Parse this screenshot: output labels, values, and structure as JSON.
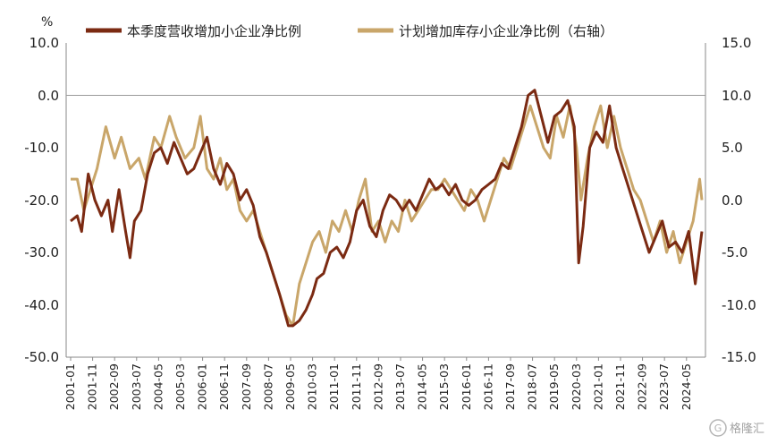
{
  "chart_data": {
    "type": "line",
    "title": "",
    "left_unit": "%",
    "left_axis": {
      "min": -50,
      "max": 10,
      "step": 10,
      "ticks": [
        "10.0",
        "0.0",
        "-10.0",
        "-20.0",
        "-30.0",
        "-40.0",
        "-50.0"
      ]
    },
    "right_axis": {
      "min": -15,
      "max": 15,
      "step": 5,
      "ticks": [
        "15.0",
        "10.0",
        "5.0",
        "0.0",
        "-5.0",
        "-10.0",
        "-15.0"
      ]
    },
    "x_tick_labels": [
      "2001-01",
      "2001-11",
      "2002-09",
      "2003-07",
      "2004-05",
      "2005-03",
      "2006-01",
      "2006-11",
      "2007-09",
      "2008-07",
      "2009-05",
      "2010-03",
      "2011-01",
      "2011-11",
      "2012-09",
      "2013-07",
      "2014-05",
      "2015-03",
      "2016-01",
      "2016-11",
      "2017-09",
      "2018-07",
      "2019-05",
      "2020-03",
      "2021-01",
      "2021-11",
      "2022-09",
      "2023-07",
      "2024-05"
    ],
    "x_start": "2001-01",
    "x_end": "2024-12",
    "series": [
      {
        "name": "本季度营收增加小企业净比例",
        "axis": "left",
        "color": "#7B2A12",
        "anchors": [
          [
            "2001-01",
            -24
          ],
          [
            "2001-04",
            -23
          ],
          [
            "2001-06",
            -26
          ],
          [
            "2001-09",
            -15
          ],
          [
            "2001-12",
            -20
          ],
          [
            "2002-03",
            -23
          ],
          [
            "2002-06",
            -20
          ],
          [
            "2002-08",
            -26
          ],
          [
            "2002-11",
            -18
          ],
          [
            "2003-02",
            -26
          ],
          [
            "2003-04",
            -31
          ],
          [
            "2003-06",
            -24
          ],
          [
            "2003-09",
            -22
          ],
          [
            "2003-12",
            -15
          ],
          [
            "2004-03",
            -11
          ],
          [
            "2004-06",
            -10
          ],
          [
            "2004-09",
            -13
          ],
          [
            "2004-12",
            -9
          ],
          [
            "2005-03",
            -12
          ],
          [
            "2005-06",
            -15
          ],
          [
            "2005-09",
            -14
          ],
          [
            "2005-12",
            -11
          ],
          [
            "2006-03",
            -8
          ],
          [
            "2006-06",
            -14
          ],
          [
            "2006-09",
            -17
          ],
          [
            "2006-12",
            -13
          ],
          [
            "2007-03",
            -15
          ],
          [
            "2007-06",
            -20
          ],
          [
            "2007-09",
            -18
          ],
          [
            "2007-12",
            -21
          ],
          [
            "2008-03",
            -27
          ],
          [
            "2008-06",
            -30
          ],
          [
            "2008-09",
            -34
          ],
          [
            "2008-12",
            -38
          ],
          [
            "2009-02",
            -41
          ],
          [
            "2009-04",
            -44
          ],
          [
            "2009-06",
            -44
          ],
          [
            "2009-09",
            -43
          ],
          [
            "2009-12",
            -41
          ],
          [
            "2010-03",
            -38
          ],
          [
            "2010-05",
            -35
          ],
          [
            "2010-08",
            -34
          ],
          [
            "2010-11",
            -30
          ],
          [
            "2011-02",
            -29
          ],
          [
            "2011-05",
            -31
          ],
          [
            "2011-08",
            -28
          ],
          [
            "2011-11",
            -22
          ],
          [
            "2012-02",
            -20
          ],
          [
            "2012-05",
            -25
          ],
          [
            "2012-08",
            -27
          ],
          [
            "2012-11",
            -22
          ],
          [
            "2013-02",
            -19
          ],
          [
            "2013-05",
            -20
          ],
          [
            "2013-08",
            -22
          ],
          [
            "2013-11",
            -20
          ],
          [
            "2014-02",
            -22
          ],
          [
            "2014-05",
            -19
          ],
          [
            "2014-08",
            -16
          ],
          [
            "2014-11",
            -18
          ],
          [
            "2015-02",
            -17
          ],
          [
            "2015-05",
            -19
          ],
          [
            "2015-08",
            -17
          ],
          [
            "2015-11",
            -20
          ],
          [
            "2016-02",
            -21
          ],
          [
            "2016-05",
            -20
          ],
          [
            "2016-08",
            -18
          ],
          [
            "2016-11",
            -17
          ],
          [
            "2017-02",
            -16
          ],
          [
            "2017-05",
            -13
          ],
          [
            "2017-08",
            -14
          ],
          [
            "2017-11",
            -10
          ],
          [
            "2018-02",
            -6
          ],
          [
            "2018-05",
            0
          ],
          [
            "2018-08",
            1
          ],
          [
            "2018-11",
            -4
          ],
          [
            "2019-02",
            -9
          ],
          [
            "2019-05",
            -4
          ],
          [
            "2019-08",
            -3
          ],
          [
            "2019-11",
            -1
          ],
          [
            "2020-02",
            -6
          ],
          [
            "2020-04",
            -32
          ],
          [
            "2020-06",
            -25
          ],
          [
            "2020-09",
            -10
          ],
          [
            "2020-12",
            -7
          ],
          [
            "2021-03",
            -9
          ],
          [
            "2021-06",
            -2
          ],
          [
            "2021-09",
            -10
          ],
          [
            "2021-12",
            -14
          ],
          [
            "2022-03",
            -18
          ],
          [
            "2022-06",
            -22
          ],
          [
            "2022-09",
            -26
          ],
          [
            "2022-12",
            -30
          ],
          [
            "2023-03",
            -27
          ],
          [
            "2023-06",
            -24
          ],
          [
            "2023-09",
            -29
          ],
          [
            "2023-12",
            -28
          ],
          [
            "2024-03",
            -30
          ],
          [
            "2024-06",
            -26
          ],
          [
            "2024-09",
            -36
          ],
          [
            "2024-12",
            -26
          ]
        ]
      },
      {
        "name": "计划增加库存小企业净比例（右轴）",
        "axis": "right",
        "color": "#C9A66A",
        "anchors": [
          [
            "2001-01",
            2
          ],
          [
            "2001-04",
            2
          ],
          [
            "2001-07",
            -1
          ],
          [
            "2001-10",
            1
          ],
          [
            "2002-01",
            3
          ],
          [
            "2002-05",
            7
          ],
          [
            "2002-09",
            4
          ],
          [
            "2002-12",
            6
          ],
          [
            "2003-04",
            3
          ],
          [
            "2003-08",
            4
          ],
          [
            "2003-11",
            2
          ],
          [
            "2004-03",
            6
          ],
          [
            "2004-06",
            5
          ],
          [
            "2004-10",
            8
          ],
          [
            "2005-01",
            6
          ],
          [
            "2005-05",
            4
          ],
          [
            "2005-09",
            5
          ],
          [
            "2005-12",
            8
          ],
          [
            "2006-03",
            3
          ],
          [
            "2006-06",
            2
          ],
          [
            "2006-09",
            4
          ],
          [
            "2006-12",
            1
          ],
          [
            "2007-03",
            2
          ],
          [
            "2007-06",
            -1
          ],
          [
            "2007-09",
            -2
          ],
          [
            "2007-12",
            -1
          ],
          [
            "2008-03",
            -3
          ],
          [
            "2008-06",
            -5
          ],
          [
            "2008-09",
            -7
          ],
          [
            "2008-12",
            -9
          ],
          [
            "2009-03",
            -11
          ],
          [
            "2009-06",
            -12
          ],
          [
            "2009-09",
            -8
          ],
          [
            "2009-12",
            -6
          ],
          [
            "2010-03",
            -4
          ],
          [
            "2010-06",
            -3
          ],
          [
            "2010-09",
            -5
          ],
          [
            "2010-12",
            -2
          ],
          [
            "2011-03",
            -3
          ],
          [
            "2011-06",
            -1
          ],
          [
            "2011-09",
            -3
          ],
          [
            "2011-12",
            0
          ],
          [
            "2012-03",
            2
          ],
          [
            "2012-06",
            -3
          ],
          [
            "2012-09",
            -2
          ],
          [
            "2012-12",
            -4
          ],
          [
            "2013-03",
            -2
          ],
          [
            "2013-06",
            -3
          ],
          [
            "2013-09",
            0
          ],
          [
            "2013-12",
            -2
          ],
          [
            "2014-03",
            -1
          ],
          [
            "2014-06",
            0
          ],
          [
            "2014-09",
            1
          ],
          [
            "2014-12",
            1
          ],
          [
            "2015-03",
            2
          ],
          [
            "2015-06",
            1
          ],
          [
            "2015-09",
            0
          ],
          [
            "2015-12",
            -1
          ],
          [
            "2016-03",
            1
          ],
          [
            "2016-06",
            0
          ],
          [
            "2016-09",
            -2
          ],
          [
            "2016-12",
            0
          ],
          [
            "2017-03",
            2
          ],
          [
            "2017-06",
            4
          ],
          [
            "2017-09",
            3
          ],
          [
            "2017-12",
            5
          ],
          [
            "2018-03",
            7
          ],
          [
            "2018-06",
            9
          ],
          [
            "2018-09",
            7
          ],
          [
            "2018-12",
            5
          ],
          [
            "2019-03",
            4
          ],
          [
            "2019-06",
            8
          ],
          [
            "2019-09",
            6
          ],
          [
            "2019-12",
            9
          ],
          [
            "2020-03",
            5
          ],
          [
            "2020-05",
            0
          ],
          [
            "2020-08",
            4
          ],
          [
            "2020-11",
            7
          ],
          [
            "2021-02",
            9
          ],
          [
            "2021-05",
            5
          ],
          [
            "2021-08",
            8
          ],
          [
            "2021-11",
            5
          ],
          [
            "2022-02",
            3
          ],
          [
            "2022-05",
            1
          ],
          [
            "2022-08",
            0
          ],
          [
            "2022-11",
            -2
          ],
          [
            "2023-02",
            -4
          ],
          [
            "2023-05",
            -2
          ],
          [
            "2023-08",
            -5
          ],
          [
            "2023-11",
            -3
          ],
          [
            "2024-02",
            -6
          ],
          [
            "2024-05",
            -4
          ],
          [
            "2024-08",
            -2
          ],
          [
            "2024-11",
            2
          ],
          [
            "2024-12",
            0
          ]
        ]
      }
    ],
    "legend_position": "top",
    "grid": false
  },
  "watermark": {
    "glyph": "G",
    "label": "格隆汇"
  }
}
